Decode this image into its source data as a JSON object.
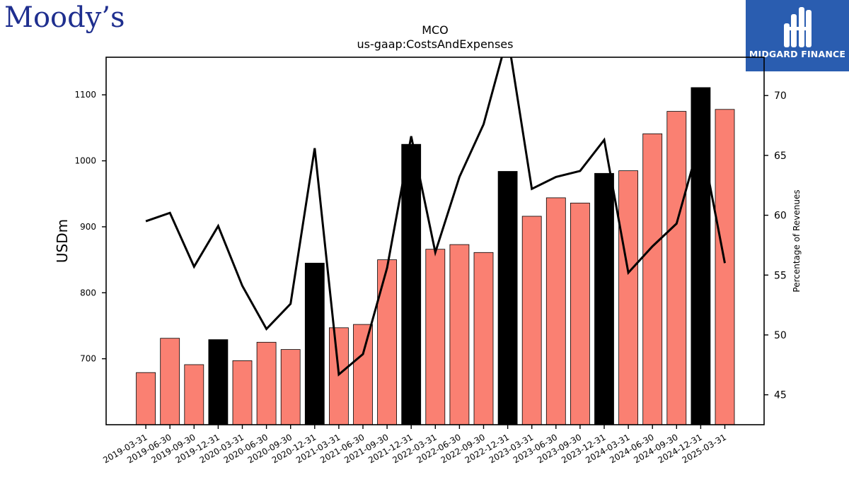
{
  "logos": {
    "left_brand": "Moody’s",
    "right_brand": "MIDGARD FINANCE"
  },
  "chart_data": {
    "type": "bar",
    "title": "MCO",
    "subtitle": "us-gaap:CostsAndExpenses",
    "ylabel": "USDm",
    "y2label": "Percentage of Revenues",
    "ylim": [
      600,
      1157
    ],
    "y2lim": [
      42.5,
      73.2
    ],
    "yticks": [
      700,
      800,
      900,
      1000,
      1100
    ],
    "y2ticks": [
      45,
      50,
      55,
      60,
      65,
      70
    ],
    "categories": [
      "2019-03-31",
      "2019-06-30",
      "2019-09-30",
      "2019-12-31",
      "2020-03-31",
      "2020-06-30",
      "2020-09-30",
      "2020-12-31",
      "2021-03-31",
      "2021-06-30",
      "2021-09-30",
      "2021-12-31",
      "2022-03-31",
      "2022-06-30",
      "2022-09-30",
      "2022-12-31",
      "2023-03-31",
      "2023-06-30",
      "2023-09-30",
      "2023-12-31",
      "2024-03-31",
      "2024-06-30",
      "2024-09-30",
      "2024-12-31",
      "2025-03-31"
    ],
    "series": [
      {
        "values": [
          679,
          731,
          691,
          729,
          697,
          725,
          714,
          845,
          747,
          752,
          850,
          1025,
          866,
          873,
          861,
          984,
          916,
          944,
          936,
          981,
          985,
          1041,
          1075,
          1111,
          1078
        ],
        "colors": [
          "#fa8072",
          "#fa8072",
          "#fa8072",
          "#000000",
          "#fa8072",
          "#fa8072",
          "#fa8072",
          "#000000",
          "#fa8072",
          "#fa8072",
          "#fa8072",
          "#000000",
          "#fa8072",
          "#fa8072",
          "#fa8072",
          "#000000",
          "#fa8072",
          "#fa8072",
          "#fa8072",
          "#000000",
          "#fa8072",
          "#fa8072",
          "#fa8072",
          "#000000",
          "#fa8072"
        ]
      },
      {
        "axis": "right",
        "type": "line",
        "color": "#000000",
        "values": [
          59.5,
          60.2,
          55.7,
          59.1,
          54.1,
          50.5,
          52.6,
          65.6,
          46.7,
          48.4,
          55.6,
          66.6,
          56.9,
          63.2,
          67.6,
          75.0,
          62.2,
          63.2,
          63.7,
          66.3,
          55.2,
          57.4,
          59.3,
          66.5,
          56.0
        ]
      }
    ],
    "grid": false,
    "legend": "none"
  }
}
